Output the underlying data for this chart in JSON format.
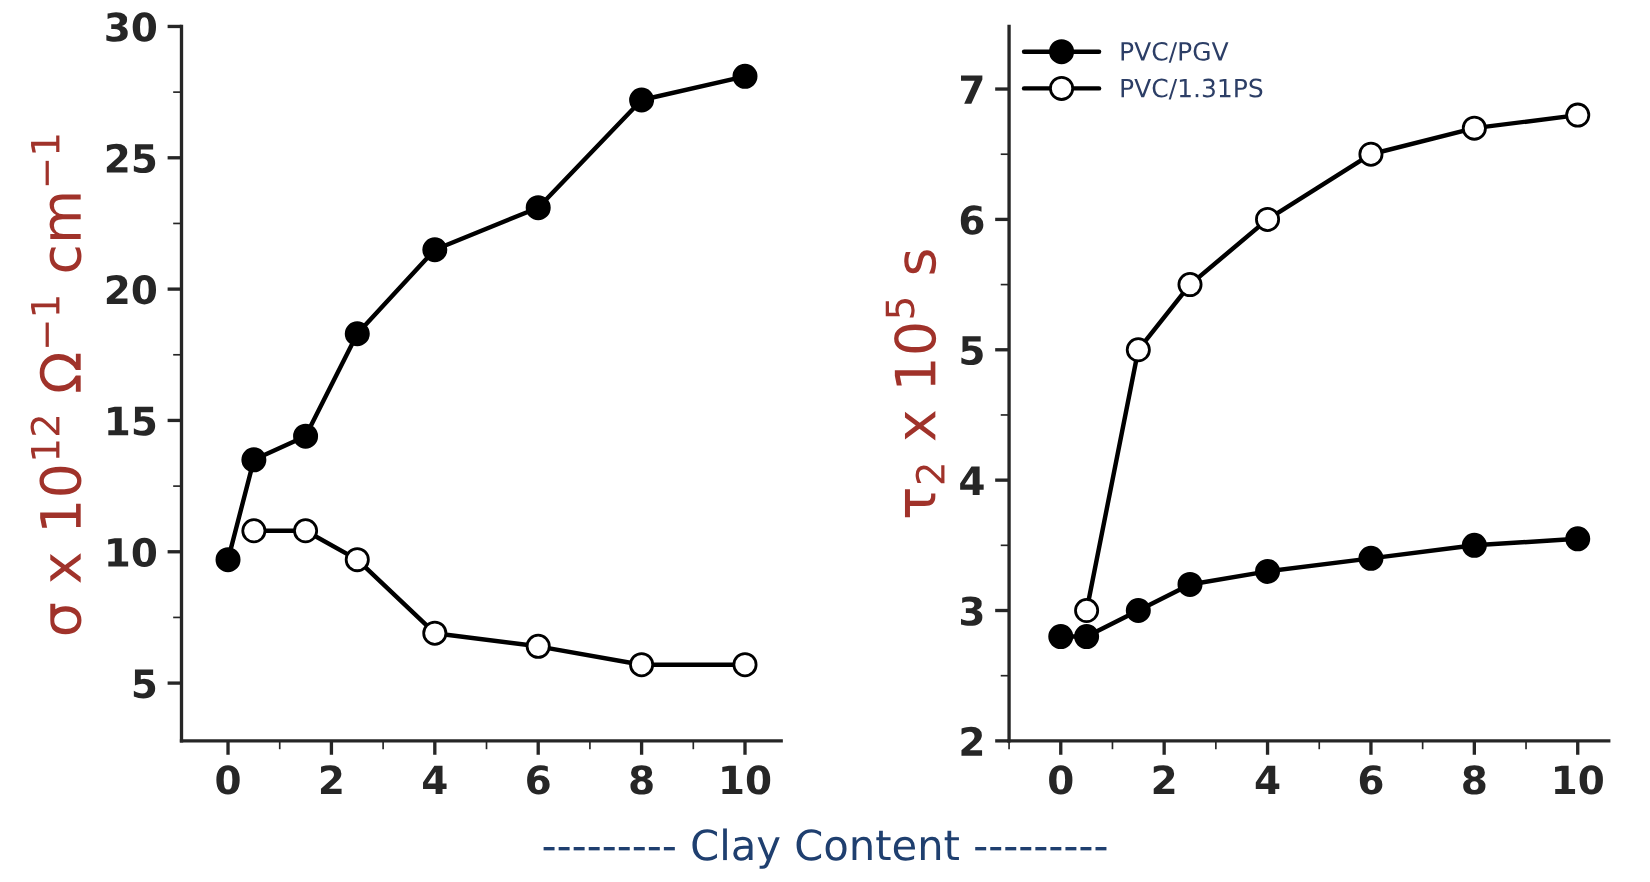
{
  "chart_data": [
    {
      "type": "line",
      "ylabel": "σ x 10$^{12}$ Ω$^{−1}$ cm$^{−1}$",
      "xlabel": "--------- Clay Content ---------",
      "xlim": [
        -0.9,
        10.7
      ],
      "xticks": [
        0,
        2,
        4,
        6,
        8,
        10
      ],
      "ylim": [
        2.8,
        30
      ],
      "yticks": [
        5,
        10,
        15,
        20,
        25,
        30
      ],
      "marker": "circle",
      "line_style": "solid",
      "grid": false,
      "legend": false,
      "series": [
        {
          "color": "#000000",
          "x": [
            0,
            0.5,
            1.5,
            2.5,
            4,
            6,
            8,
            10
          ],
          "values": [
            9.7,
            13.5,
            14.4,
            18.3,
            21.5,
            23.1,
            27.2,
            28.1
          ]
        },
        {
          "color": "#000000",
          "x": [
            0.5,
            1.5,
            2.5,
            4,
            6,
            8,
            10
          ],
          "values": [
            10.8,
            10.8,
            9.7,
            6.9,
            6.4,
            5.7,
            5.7
          ]
        }
      ]
    },
    {
      "type": "line",
      "ylabel": "τ$_{2}$ x 10$^{5}$ s",
      "xlim": [
        -1.0,
        10.6
      ],
      "xticks": [
        0,
        2,
        4,
        6,
        8,
        10
      ],
      "ylim": [
        2,
        7.48
      ],
      "yticks": [
        2,
        3,
        4,
        5,
        6,
        7
      ],
      "marker": "circle",
      "line_style": "solid",
      "grid": false,
      "legend": "top left",
      "series": [
        {
          "name": "PVC/PGV",
          "color": "#000000",
          "x": [
            0,
            0.5,
            1.5,
            2.5,
            4,
            6,
            8,
            10
          ],
          "values": [
            2.8,
            2.8,
            3.0,
            3.2,
            3.3,
            3.4,
            3.5,
            3.55
          ]
        },
        {
          "name": "PVC/1.31PS",
          "color": "#000000",
          "x": [
            0.5,
            1.5,
            2.5,
            4,
            6,
            8,
            10
          ],
          "values": [
            3.0,
            5.0,
            5.5,
            6.0,
            6.5,
            6.7,
            6.8
          ]
        }
      ]
    }
  ]
}
